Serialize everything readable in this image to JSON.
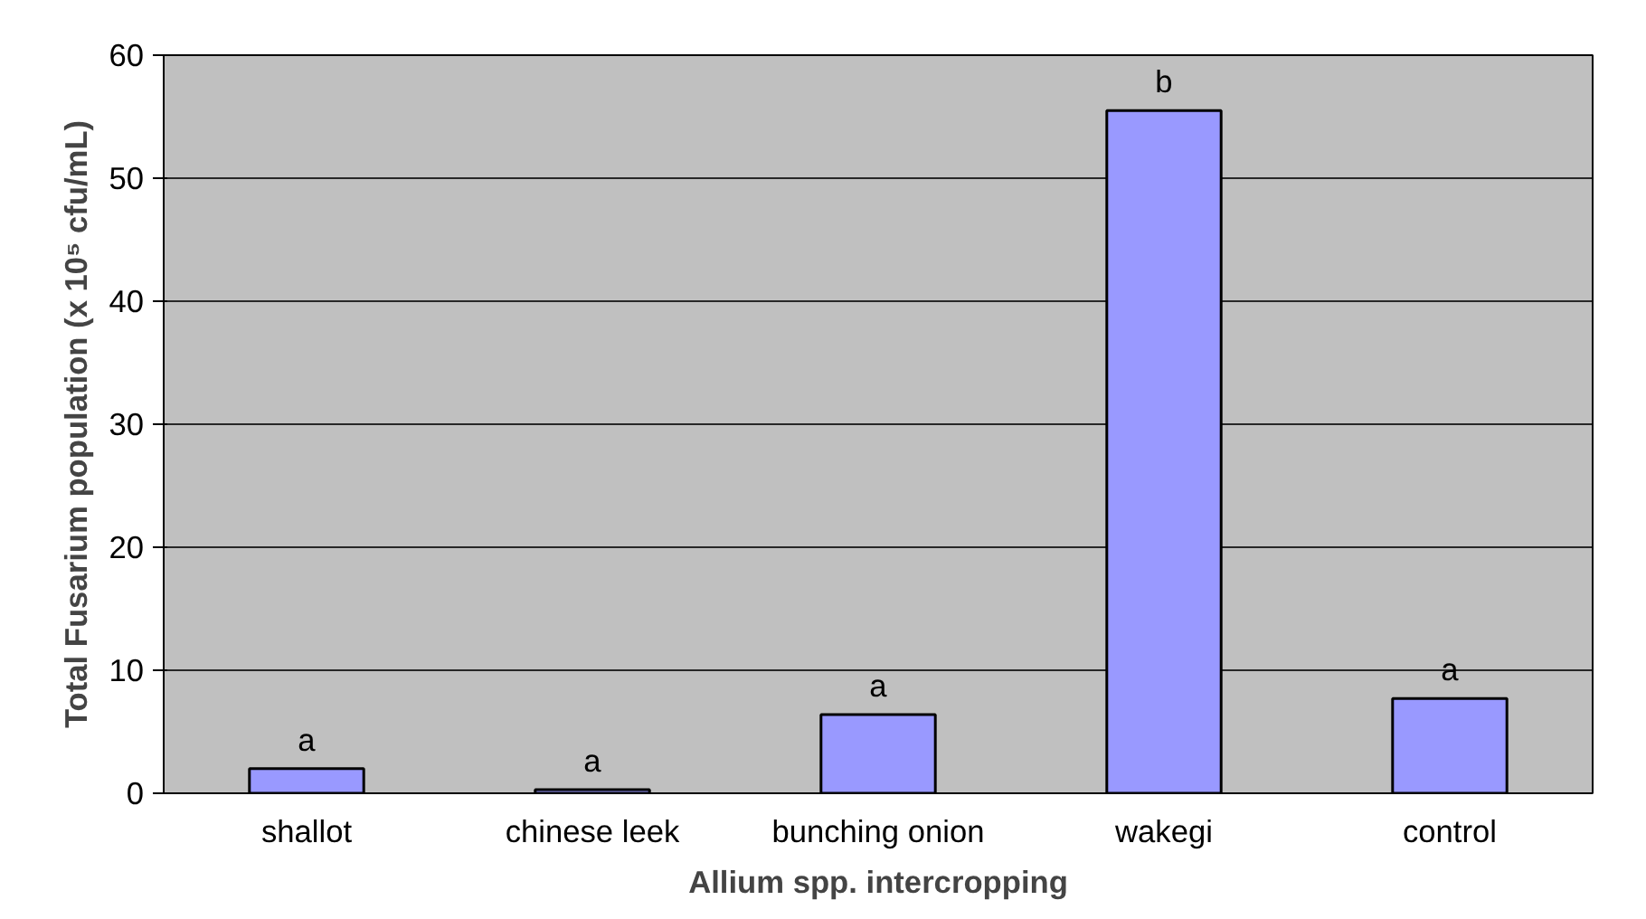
{
  "chart_data": {
    "type": "bar",
    "categories": [
      "shallot",
      "chinese leek",
      "bunching onion",
      "wakegi",
      "control"
    ],
    "values": [
      2.0,
      0.3,
      6.4,
      55.5,
      7.7
    ],
    "color": "#9999ff",
    "xlabel": "Allium spp. intercropping",
    "ylabel": "Total Fusarium population (x 10⁵ cfu/mL)",
    "ylim": [
      0,
      60
    ],
    "yticks": [
      0,
      10,
      20,
      30,
      40,
      50,
      60
    ],
    "grid": "y",
    "annotations": [
      {
        "text": "a",
        "x": "shallot",
        "y": 2.0
      },
      {
        "text": "a",
        "x": "chinese leek",
        "y": 0.3
      },
      {
        "text": "a",
        "x": "bunching onion",
        "y": 6.4
      },
      {
        "text": "b",
        "x": "wakegi",
        "y": 55.5
      },
      {
        "text": "a",
        "x": "control",
        "y": 7.7
      }
    ]
  }
}
